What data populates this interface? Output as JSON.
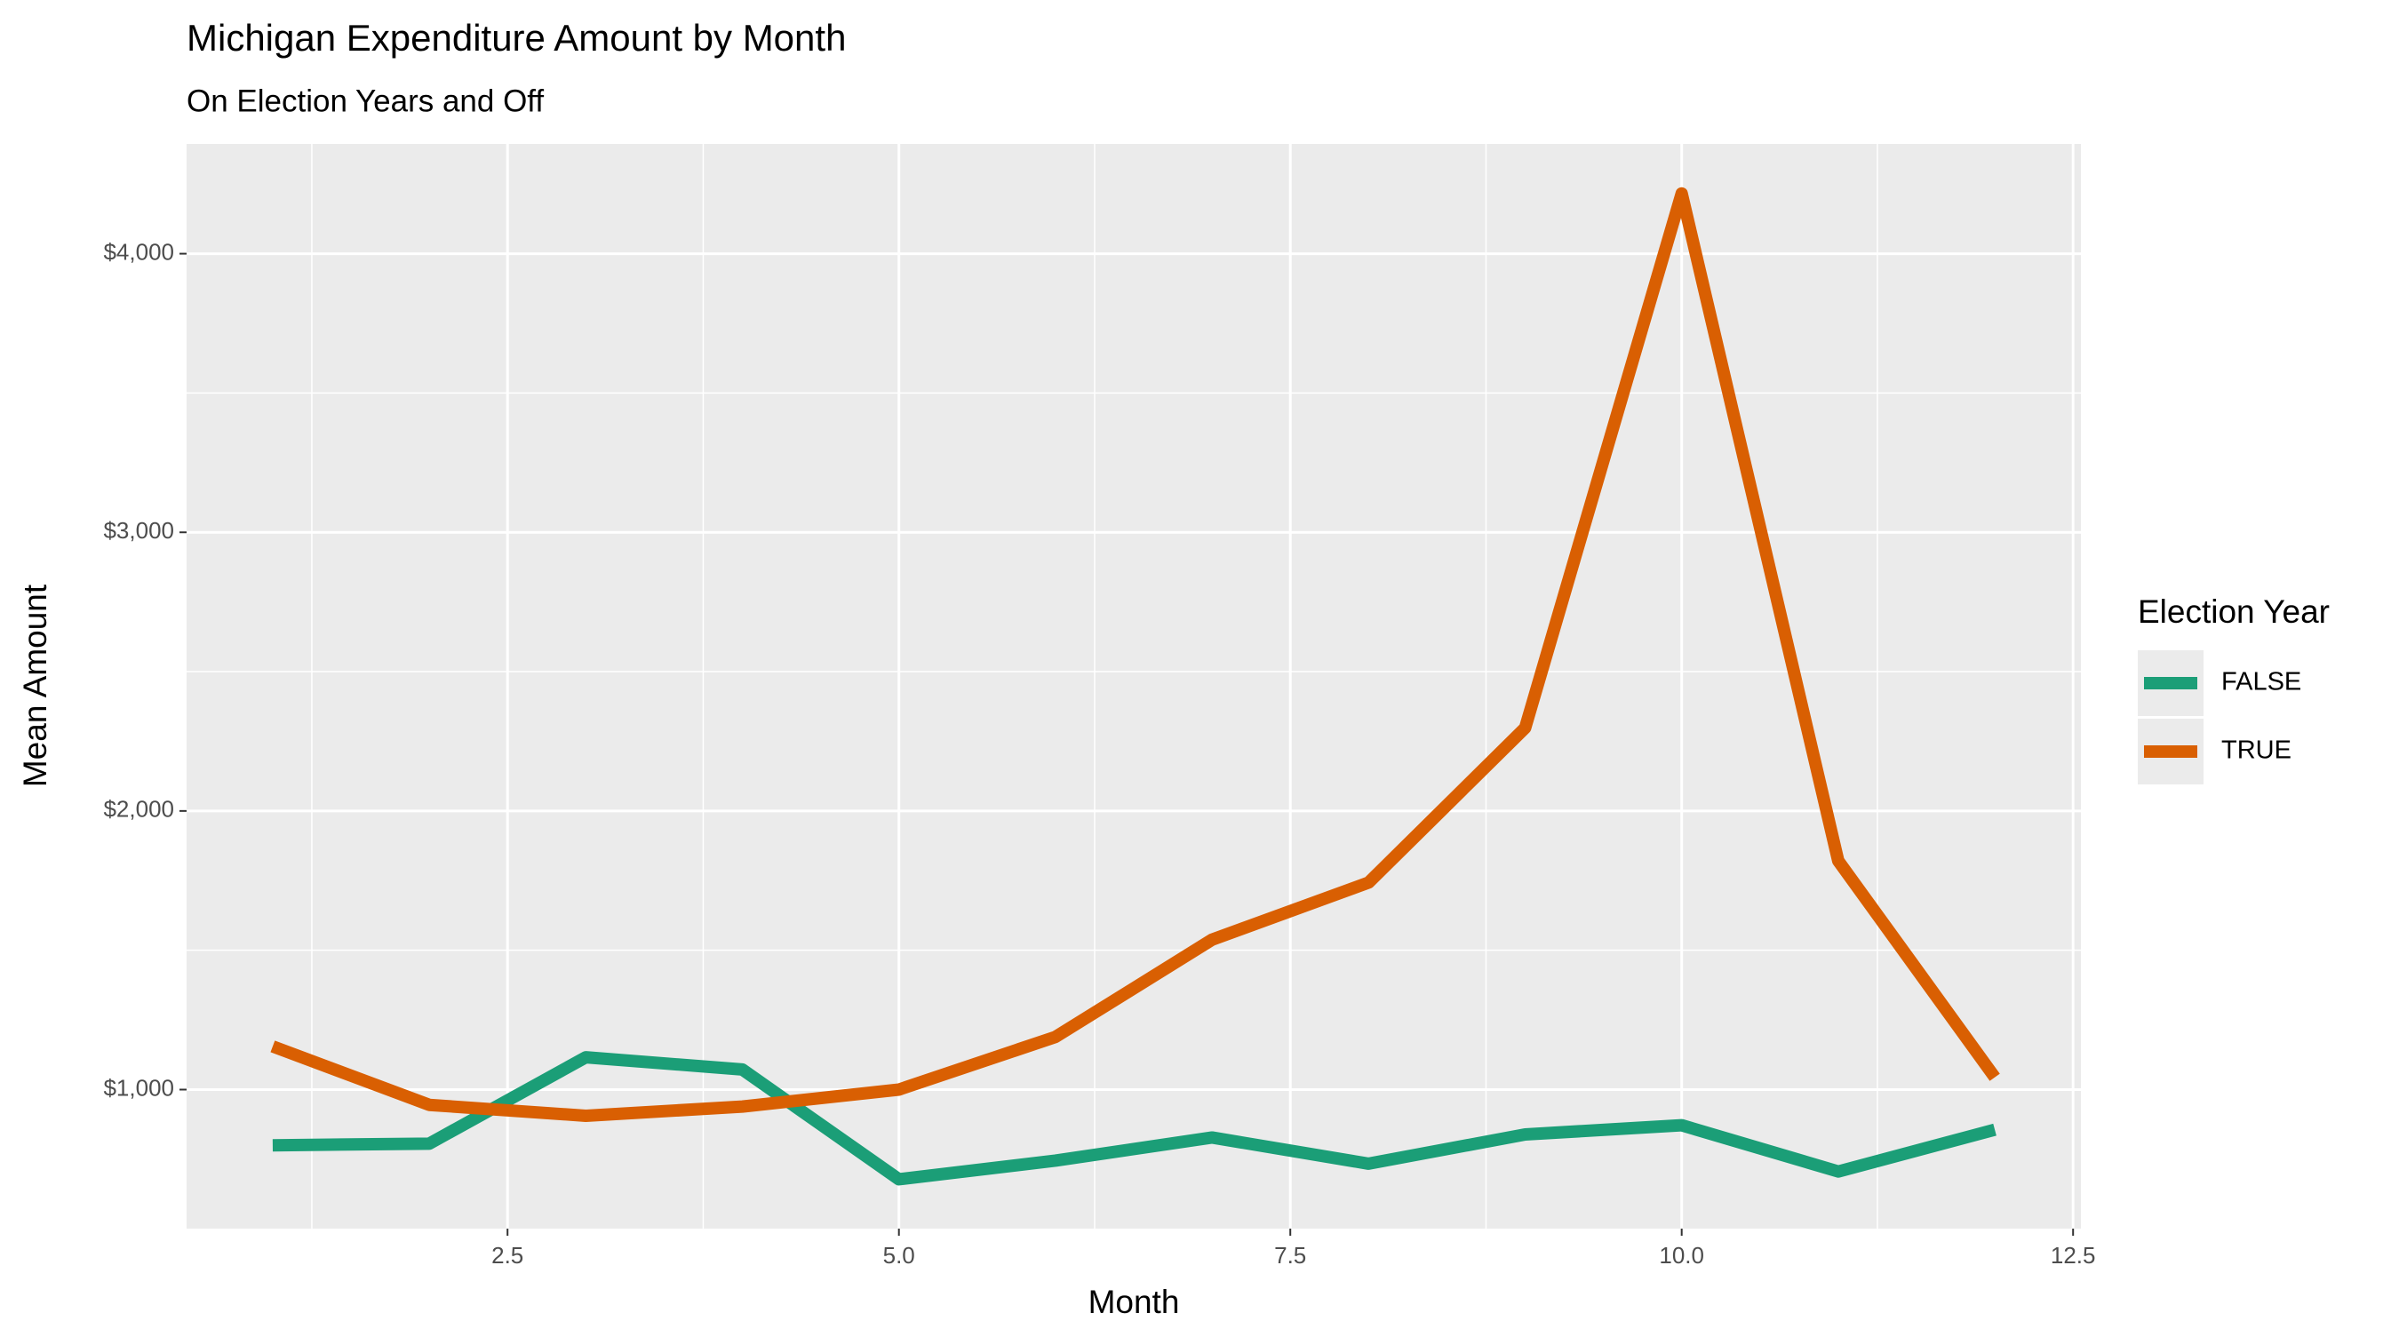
{
  "chart_data": {
    "type": "line",
    "title": "Michigan Expenditure Amount by Month",
    "subtitle": "On Election Years and Off",
    "x_label": "Month",
    "y_label": "Mean Amount",
    "legend_title": "Election Year",
    "legend_position": "right",
    "grid": true,
    "x": [
      1,
      2,
      3,
      4,
      5,
      6,
      7,
      8,
      9,
      10,
      11,
      12
    ],
    "series": [
      {
        "name": "FALSE",
        "color": "#1b9e77",
        "values": [
          800,
          806,
          1116,
          1072,
          678,
          745,
          828,
          734,
          839,
          872,
          706,
          856
        ]
      },
      {
        "name": "TRUE",
        "color": "#d95f02",
        "values": [
          1155,
          945,
          906,
          939,
          1000,
          1189,
          1538,
          1743,
          2298,
          4216,
          1821,
          1044
        ]
      }
    ],
    "xlim": [
      0.45,
      12.55
    ],
    "ylim": [
      501,
      4394
    ],
    "xticks": [
      2.5,
      {
        "value": 5,
        "label": "5.0"
      },
      7.5,
      {
        "value": 10,
        "label": "10.0"
      },
      12.5
    ],
    "xminorticks": [
      1.25,
      3.75,
      6.25,
      8.75,
      11.25
    ],
    "yticks": [
      {
        "value": 1000,
        "label": "$1,000"
      },
      {
        "value": 2000,
        "label": "$2,000"
      },
      {
        "value": 3000,
        "label": "$3,000"
      },
      {
        "value": 4000,
        "label": "$4,000"
      }
    ],
    "yminorticks": [
      1500,
      2500,
      3500
    ]
  }
}
